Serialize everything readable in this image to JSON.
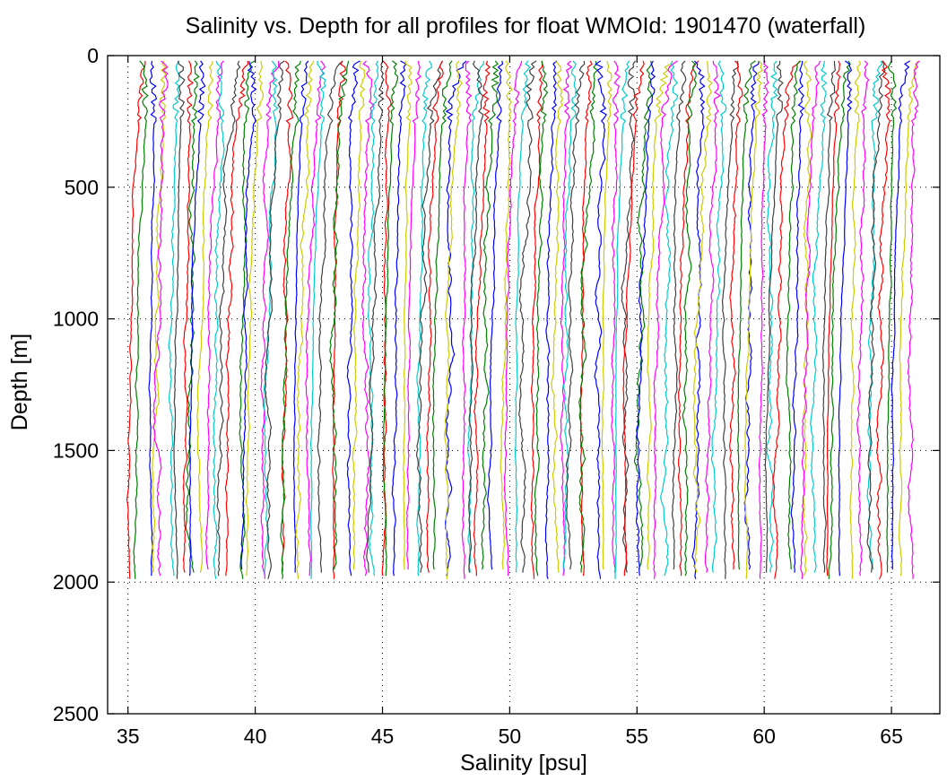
{
  "chart_data": {
    "type": "line",
    "title": "Salinity vs. Depth for all profiles for float WMOId: 1901470 (waterfall)",
    "xlabel": "Salinity [psu]",
    "ylabel": "Depth [m]",
    "xlim": [
      34.2,
      66.9
    ],
    "ylim": [
      0,
      2500
    ],
    "y_reversed": true,
    "grid": true,
    "x_ticks": [
      "35",
      "40",
      "45",
      "50",
      "55",
      "60",
      "65"
    ],
    "y_ticks": [
      "0",
      "500",
      "1000",
      "1500",
      "2000",
      "2500"
    ],
    "profile_colors": [
      "#ff0000",
      "#007f00",
      "#0000ff",
      "#cccc00",
      "#ff00ff",
      "#00cccc",
      "#404040"
    ],
    "series_description": "waterfall of about 110 salinity profiles (0 to ~2000 m); each successive profile offset by +0.28 psu",
    "series": [
      {
        "x_start": 35.0,
        "x_end": 35.3,
        "depth_max": 1980
      },
      {
        "x_start": 36.0,
        "x_end": 36.1,
        "depth_max": 1960
      },
      {
        "x_start": 37.5,
        "x_end": 37.4,
        "depth_max": 1960
      },
      {
        "x_start": 39.0,
        "x_end": 39.9,
        "depth_max": 1985
      },
      {
        "x_start": 41.0,
        "x_end": 40.0,
        "depth_max": 1960
      },
      {
        "x_start": 45.3,
        "x_end": 44.8,
        "depth_max": 1960
      },
      {
        "x_start": 49.5,
        "x_end": 49.3,
        "depth_max": 1960
      },
      {
        "x_start": 55.0,
        "x_end": 54.7,
        "depth_max": 1960
      },
      {
        "x_start": 60.2,
        "x_end": 59.6,
        "depth_max": 1960
      },
      {
        "x_start": 66.2,
        "x_end": 65.4,
        "depth_max": 1960
      }
    ]
  }
}
